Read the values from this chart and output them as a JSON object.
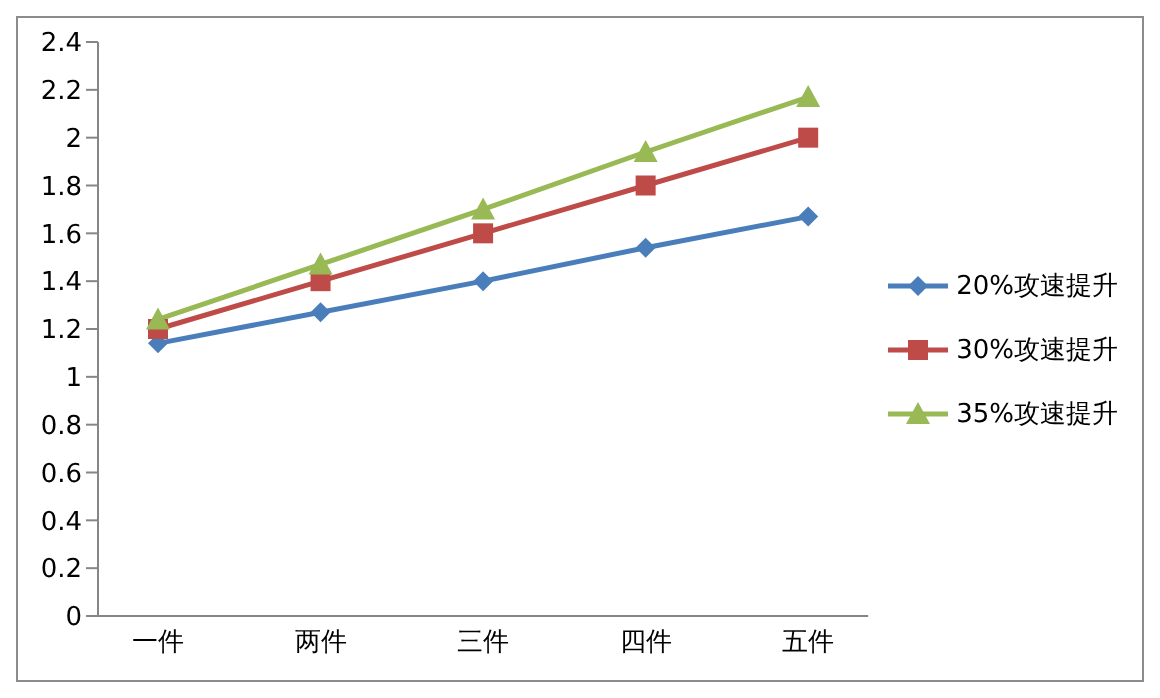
{
  "chart_data": {
    "type": "line",
    "categories": [
      "一件",
      "两件",
      "三件",
      "四件",
      "五件"
    ],
    "series": [
      {
        "name": "20%攻速提升",
        "color": "#4a7ebb",
        "marker": "diamond",
        "values": [
          1.14,
          1.27,
          1.4,
          1.54,
          1.67
        ]
      },
      {
        "name": "30%攻速提升",
        "color": "#be4b48",
        "marker": "square",
        "values": [
          1.2,
          1.4,
          1.6,
          1.8,
          2.0
        ]
      },
      {
        "name": "35%攻速提升",
        "color": "#98b954",
        "marker": "triangle",
        "values": [
          1.24,
          1.47,
          1.7,
          1.94,
          2.17
        ]
      }
    ],
    "ylim": [
      0,
      2.4
    ],
    "yticks": [
      0,
      0.2,
      0.4,
      0.6,
      0.8,
      1,
      1.2,
      1.4,
      1.6,
      1.8,
      2,
      2.2,
      2.4
    ],
    "grid": false,
    "legend": "right",
    "line_style": "solid"
  }
}
